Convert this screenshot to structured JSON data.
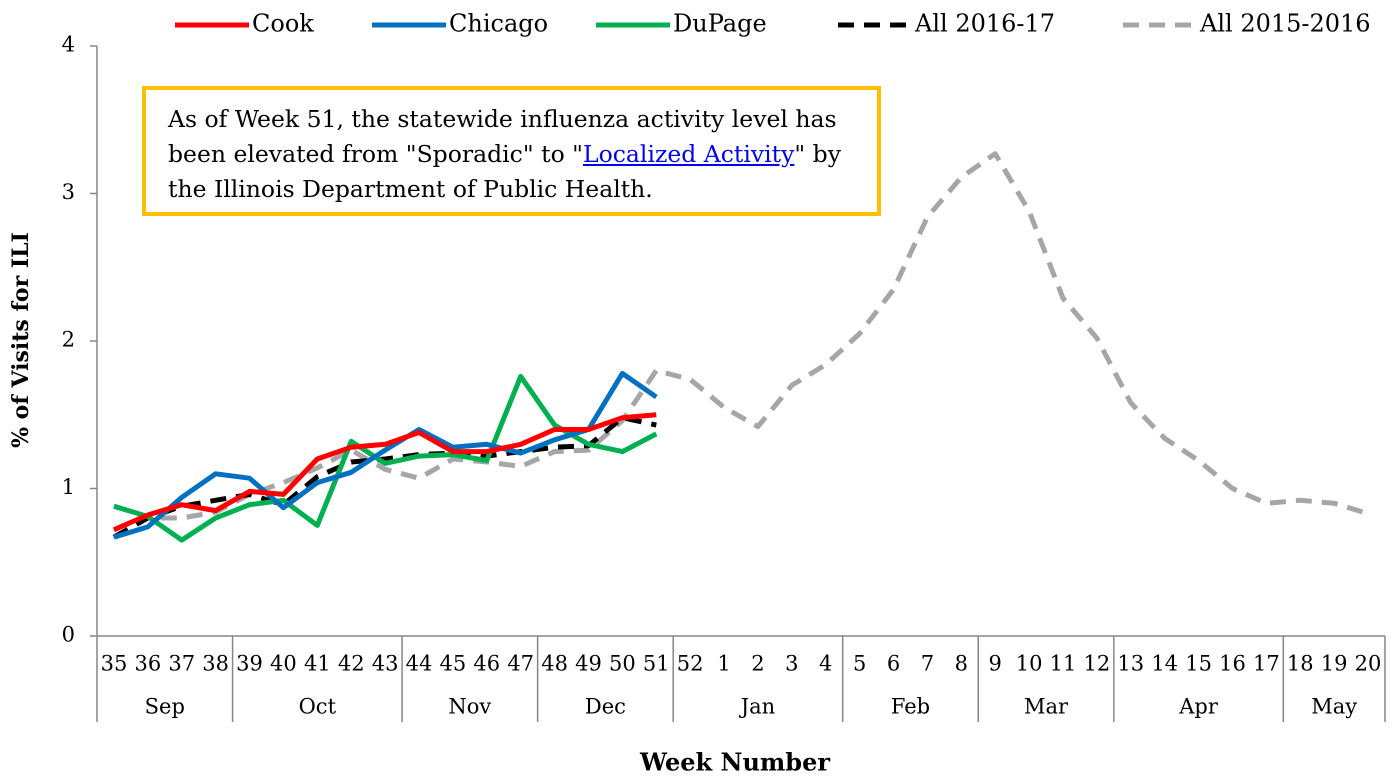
{
  "chart_data": {
    "type": "line",
    "y_label": "% of Visits for ILI",
    "x_label": "Week Number",
    "annotation": [
      "As of Week 51, the statewide influenza activity level has been elevated from \"Sporadic\" to \"",
      "Localized Activity",
      "\" by the Illinois Department of Public Health."
    ],
    "categories": [
      "35",
      "36",
      "37",
      "38",
      "39",
      "40",
      "41",
      "42",
      "43",
      "44",
      "45",
      "46",
      "47",
      "48",
      "49",
      "50",
      "51",
      "52",
      "1",
      "2",
      "3",
      "4",
      "5",
      "6",
      "7",
      "8",
      "9",
      "10",
      "11",
      "12",
      "13",
      "14",
      "15",
      "16",
      "17",
      "18",
      "19",
      "20"
    ],
    "category_groups": [
      {
        "label": "Sep",
        "from": "35",
        "to": "38"
      },
      {
        "label": "Oct",
        "from": "39",
        "to": "43"
      },
      {
        "label": "Nov",
        "from": "44",
        "to": "47"
      },
      {
        "label": "Dec",
        "from": "48",
        "to": "51"
      },
      {
        "label": "Jan",
        "from": "52",
        "to": "4"
      },
      {
        "label": "Feb",
        "from": "5",
        "to": "8"
      },
      {
        "label": "Mar",
        "from": "9",
        "to": "12"
      },
      {
        "label": "Apr",
        "from": "13",
        "to": "17"
      },
      {
        "label": "May",
        "from": "18",
        "to": "20"
      }
    ],
    "ylim": [
      0,
      4
    ],
    "yticks": [
      0,
      1,
      2,
      3,
      4
    ],
    "grid": false,
    "series": [
      {
        "name": "Cook",
        "color": "#FF0000",
        "dashed": false,
        "values": [
          0.72,
          0.82,
          0.89,
          0.85,
          0.98,
          0.96,
          1.2,
          1.28,
          1.3,
          1.38,
          1.25,
          1.25,
          1.3,
          1.4,
          1.4,
          1.48,
          1.5,
          null,
          null,
          null,
          null,
          null,
          null,
          null,
          null,
          null,
          null,
          null,
          null,
          null,
          null,
          null,
          null,
          null,
          null,
          null,
          null,
          null
        ]
      },
      {
        "name": "Chicago",
        "color": "#0070C0",
        "dashed": false,
        "values": [
          0.67,
          0.74,
          0.94,
          1.1,
          1.07,
          0.87,
          1.04,
          1.11,
          1.26,
          1.4,
          1.28,
          1.3,
          1.24,
          1.33,
          1.4,
          1.78,
          1.62,
          null,
          null,
          null,
          null,
          null,
          null,
          null,
          null,
          null,
          null,
          null,
          null,
          null,
          null,
          null,
          null,
          null,
          null,
          null,
          null,
          null
        ]
      },
      {
        "name": "DuPage",
        "color": "#00B050",
        "dashed": false,
        "values": [
          0.88,
          0.81,
          0.65,
          0.8,
          0.89,
          0.92,
          0.75,
          1.32,
          1.17,
          1.22,
          1.23,
          1.19,
          1.76,
          1.43,
          1.3,
          1.25,
          1.37,
          null,
          null,
          null,
          null,
          null,
          null,
          null,
          null,
          null,
          null,
          null,
          null,
          null,
          null,
          null,
          null,
          null,
          null,
          null,
          null,
          null
        ]
      },
      {
        "name": "All 2016-17",
        "color": "#000000",
        "dashed": true,
        "values": [
          0.67,
          0.8,
          0.88,
          0.92,
          0.96,
          0.89,
          1.08,
          1.18,
          1.2,
          1.23,
          1.24,
          1.22,
          1.25,
          1.28,
          1.29,
          1.48,
          1.43,
          null,
          null,
          null,
          null,
          null,
          null,
          null,
          null,
          null,
          null,
          null,
          null,
          null,
          null,
          null,
          null,
          null,
          null,
          null,
          null,
          null
        ]
      },
      {
        "name": "All 2015-2016",
        "color": "#A6A6A6",
        "dashed": true,
        "values": [
          0.67,
          0.8,
          0.8,
          0.84,
          0.96,
          1.04,
          1.14,
          1.26,
          1.13,
          1.07,
          1.2,
          1.18,
          1.15,
          1.25,
          1.26,
          1.46,
          1.8,
          1.74,
          1.55,
          1.42,
          1.7,
          1.84,
          2.05,
          2.35,
          2.84,
          3.11,
          3.27,
          2.88,
          2.29,
          2.02,
          1.58,
          1.34,
          1.19,
          1.0,
          0.9,
          0.92,
          0.9,
          0.83
        ]
      }
    ]
  }
}
